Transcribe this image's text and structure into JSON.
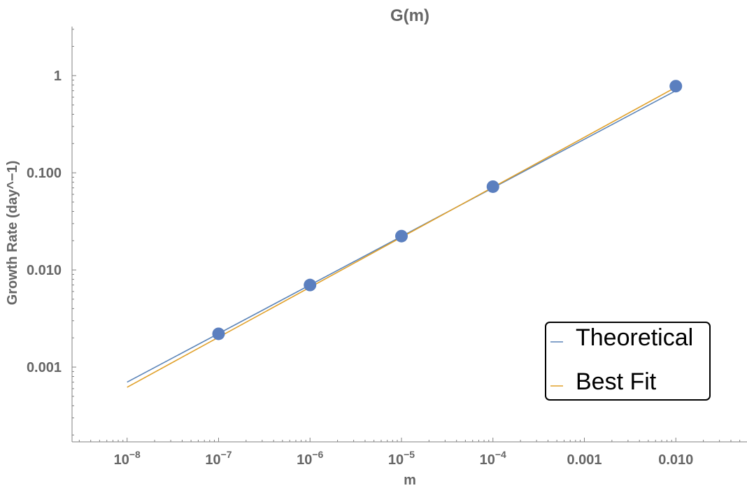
{
  "chart_data": {
    "type": "line",
    "title": "G(m)",
    "xlabel": "m",
    "ylabel": "Growth Rate (day^−1)",
    "xscale": "log",
    "yscale": "log",
    "xlim": [
      2.5e-09,
      0.06
    ],
    "ylim": [
      0.00017,
      3.2
    ],
    "grid": false,
    "legend_placement": "bottom-right",
    "x_ticks": [
      {
        "value": 1e-08,
        "base": "10",
        "exp": "−8",
        "text": ""
      },
      {
        "value": 1e-07,
        "base": "10",
        "exp": "−7",
        "text": ""
      },
      {
        "value": 1e-06,
        "base": "10",
        "exp": "−6",
        "text": ""
      },
      {
        "value": 1e-05,
        "base": "10",
        "exp": "−5",
        "text": ""
      },
      {
        "value": 0.0001,
        "base": "10",
        "exp": "−4",
        "text": ""
      },
      {
        "value": 0.001,
        "base": "",
        "exp": "",
        "text": "0.001"
      },
      {
        "value": 0.01,
        "base": "",
        "exp": "",
        "text": "0.010"
      }
    ],
    "y_ticks": [
      {
        "value": 0.001,
        "text": "0.001"
      },
      {
        "value": 0.01,
        "text": "0.010"
      },
      {
        "value": 0.1,
        "text": "0.100"
      },
      {
        "value": 1,
        "text": "1"
      }
    ],
    "points": {
      "color": "#5b7fbf",
      "x": [
        1e-07,
        1e-06,
        1e-05,
        0.0001,
        0.01
      ],
      "y": [
        0.0022,
        0.007,
        0.0223,
        0.072,
        0.78
      ]
    },
    "series": [
      {
        "name": "Theoretical",
        "color": "#5b84b8",
        "x": [
          1e-08,
          0.01
        ],
        "y": [
          0.0007,
          0.7
        ]
      },
      {
        "name": "Best Fit",
        "color": "#e0a02a",
        "x": [
          1e-08,
          0.01
        ],
        "y": [
          0.00062,
          0.76
        ]
      }
    ]
  }
}
